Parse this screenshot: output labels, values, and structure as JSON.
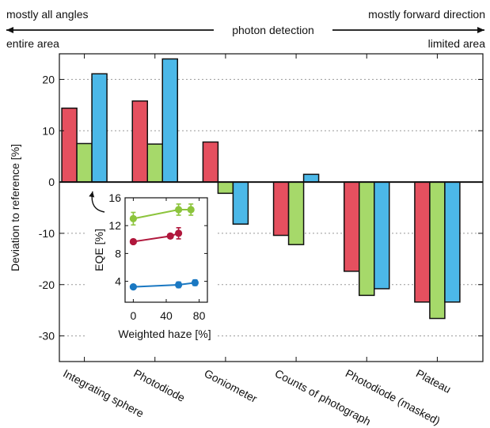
{
  "header": {
    "left_top": "mostly all angles",
    "center": "photon detection",
    "right_top": "mostly forward direction",
    "left_bottom": "entire area",
    "right_bottom": "limited area"
  },
  "chart_data": [
    {
      "type": "bar",
      "categories": [
        "Integrating sphere",
        "Photodiode",
        "Goniometer",
        "Counts of photograph",
        "Photodiode (masked)",
        "Plateau"
      ],
      "series": [
        {
          "values": [
            14.4,
            15.8,
            7.8,
            -10.4,
            -17.4,
            -23.4
          ],
          "color": "#e5505f"
        },
        {
          "values": [
            7.5,
            7.4,
            -2.2,
            -12.2,
            -22.1,
            -26.6
          ],
          "color": "#a6d96a"
        },
        {
          "values": [
            21.1,
            24.0,
            -8.2,
            1.5,
            -20.8,
            -23.4
          ],
          "color": "#4cb8e8"
        }
      ],
      "xlabel": "",
      "ylabel": "Deviation to reference [%]",
      "ylim": [
        -35,
        25
      ],
      "yticks": [
        20,
        10,
        0,
        -10,
        -20,
        -30
      ],
      "ytick_labels": [
        "20",
        "10",
        "0",
        "-10",
        "-20",
        "-30"
      ],
      "grid": true
    },
    {
      "type": "scatter",
      "inset": true,
      "xlabel": "Weighted haze [%]",
      "ylabel": "EQE [%]",
      "xlim": [
        -10,
        90
      ],
      "ylim": [
        1,
        16
      ],
      "xticks": [
        0,
        40,
        80
      ],
      "xtick_labels": [
        "0",
        "40",
        "80"
      ],
      "yticks": [
        4,
        8,
        12,
        16
      ],
      "ytick_labels": [
        "4",
        "8",
        "12",
        "16"
      ],
      "series": [
        {
          "x": [
            0,
            55,
            70
          ],
          "y": [
            13.0,
            14.3,
            14.3
          ],
          "err": [
            0.9,
            0.8,
            0.8
          ],
          "color": "#8cc43c"
        },
        {
          "x": [
            0,
            45,
            55
          ],
          "y": [
            9.7,
            10.5,
            10.9
          ],
          "err": [
            0.3,
            0.3,
            0.8
          ],
          "color": "#b0173c"
        },
        {
          "x": [
            0,
            55,
            75
          ],
          "y": [
            3.2,
            3.5,
            3.8
          ],
          "err": [
            0.2,
            0.4,
            0.4
          ],
          "color": "#1a78c2"
        }
      ]
    }
  ]
}
